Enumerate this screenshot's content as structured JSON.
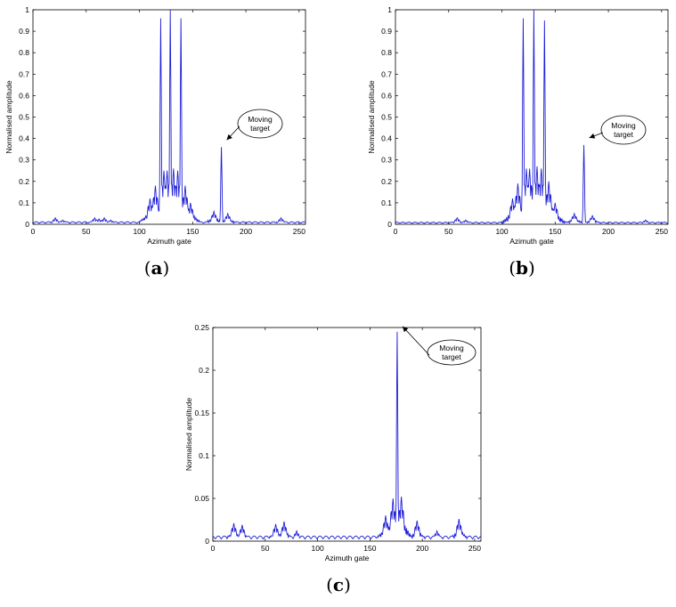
{
  "chart_data": [
    {
      "type": "line",
      "panel": "a",
      "caption": "a",
      "xlabel": "Azimuth gate",
      "ylabel": "Normalised amplitude",
      "xlim": [
        0,
        256
      ],
      "ylim": [
        0,
        1
      ],
      "x_ticks": [
        0,
        50,
        100,
        150,
        200,
        250
      ],
      "y_ticks": [
        0,
        0.1,
        0.2,
        0.3,
        0.4,
        0.5,
        0.6,
        0.7,
        0.8,
        0.9,
        1
      ],
      "grid": false,
      "line_color": "#1f1fd6",
      "annotation": {
        "lines": [
          "Moving",
          "target"
        ],
        "target": [
          177,
          0.36
        ]
      },
      "peaks": [
        {
          "x": 120,
          "y": 0.96
        },
        {
          "x": 129,
          "y": 1.0
        },
        {
          "x": 139,
          "y": 0.96
        },
        {
          "x": 177,
          "y": 0.36
        }
      ],
      "ripples": [
        {
          "x": 21,
          "y": 0.03
        },
        {
          "x": 28,
          "y": 0.02
        },
        {
          "x": 58,
          "y": 0.03
        },
        {
          "x": 62,
          "y": 0.025
        },
        {
          "x": 67,
          "y": 0.03
        },
        {
          "x": 73,
          "y": 0.02
        },
        {
          "x": 110,
          "y": 0.12
        },
        {
          "x": 115,
          "y": 0.18
        },
        {
          "x": 123,
          "y": 0.25
        },
        {
          "x": 126,
          "y": 0.25
        },
        {
          "x": 132,
          "y": 0.26
        },
        {
          "x": 136,
          "y": 0.25
        },
        {
          "x": 143,
          "y": 0.18
        },
        {
          "x": 148,
          "y": 0.1
        },
        {
          "x": 170,
          "y": 0.06
        },
        {
          "x": 183,
          "y": 0.05
        },
        {
          "x": 233,
          "y": 0.03
        }
      ],
      "floor": 0.012
    },
    {
      "type": "line",
      "panel": "b",
      "caption": "b",
      "xlabel": "Azimuth gate",
      "ylabel": "Normalised amplitude",
      "xlim": [
        0,
        256
      ],
      "ylim": [
        0,
        1
      ],
      "x_ticks": [
        0,
        50,
        100,
        150,
        200,
        250
      ],
      "y_ticks": [
        0,
        0.1,
        0.2,
        0.3,
        0.4,
        0.5,
        0.6,
        0.7,
        0.8,
        0.9,
        1
      ],
      "grid": false,
      "line_color": "#1f1fd6",
      "annotation": {
        "lines": [
          "Moving",
          "target"
        ],
        "target": [
          177,
          0.37
        ]
      },
      "peaks": [
        {
          "x": 120,
          "y": 0.96
        },
        {
          "x": 130,
          "y": 1.0
        },
        {
          "x": 140,
          "y": 0.95
        },
        {
          "x": 177,
          "y": 0.37
        }
      ],
      "ripples": [
        {
          "x": 12,
          "y": 0.01
        },
        {
          "x": 58,
          "y": 0.03
        },
        {
          "x": 66,
          "y": 0.02
        },
        {
          "x": 110,
          "y": 0.12
        },
        {
          "x": 115,
          "y": 0.19
        },
        {
          "x": 123,
          "y": 0.26
        },
        {
          "x": 126,
          "y": 0.26
        },
        {
          "x": 133,
          "y": 0.27
        },
        {
          "x": 137,
          "y": 0.26
        },
        {
          "x": 144,
          "y": 0.2
        },
        {
          "x": 150,
          "y": 0.1
        },
        {
          "x": 168,
          "y": 0.05
        },
        {
          "x": 185,
          "y": 0.04
        },
        {
          "x": 235,
          "y": 0.02
        }
      ],
      "floor": 0.01
    },
    {
      "type": "line",
      "panel": "c",
      "caption": "c",
      "xlabel": "Azimuth gate",
      "ylabel": "Normalised amplitude",
      "xlim": [
        0,
        256
      ],
      "ylim": [
        0,
        0.25
      ],
      "x_ticks": [
        0,
        50,
        100,
        150,
        200,
        250
      ],
      "y_ticks": [
        0,
        0.05,
        0.1,
        0.15,
        0.2,
        0.25
      ],
      "grid": false,
      "line_color": "#1f1fd6",
      "annotation": {
        "lines": [
          "Moving",
          "target"
        ],
        "target": [
          176,
          0.243
        ]
      },
      "peaks": [
        {
          "x": 176,
          "y": 0.245
        }
      ],
      "ripples": [
        {
          "x": 20,
          "y": 0.021
        },
        {
          "x": 28,
          "y": 0.019
        },
        {
          "x": 60,
          "y": 0.02
        },
        {
          "x": 68,
          "y": 0.023
        },
        {
          "x": 80,
          "y": 0.012
        },
        {
          "x": 165,
          "y": 0.03
        },
        {
          "x": 172,
          "y": 0.05
        },
        {
          "x": 180,
          "y": 0.052
        },
        {
          "x": 195,
          "y": 0.024
        },
        {
          "x": 214,
          "y": 0.012
        },
        {
          "x": 235,
          "y": 0.026
        }
      ],
      "floor": 0.006
    }
  ]
}
